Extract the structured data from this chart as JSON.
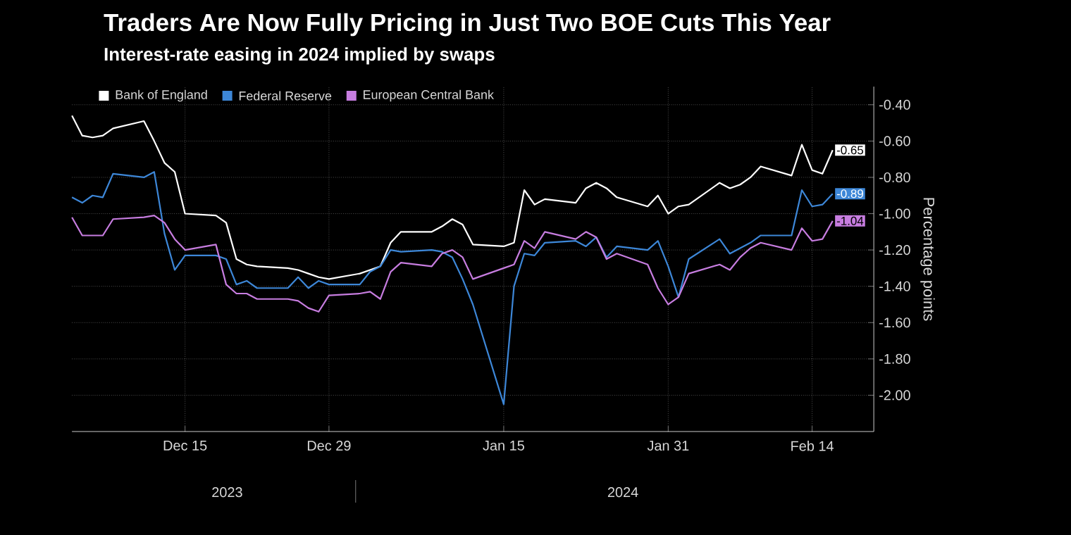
{
  "chart_data": {
    "type": "line",
    "title": "Traders Are Now Fully Pricing in Just Two BOE Cuts This Year",
    "subtitle": "Interest-rate easing in 2024 implied by swaps",
    "ylabel": "Percentage points",
    "annotations": [
      "2023",
      "2024"
    ],
    "x": [
      "2023-12-04",
      "2023-12-05",
      "2023-12-06",
      "2023-12-07",
      "2023-12-08",
      "2023-12-11",
      "2023-12-12",
      "2023-12-13",
      "2023-12-14",
      "2023-12-15",
      "2023-12-18",
      "2023-12-19",
      "2023-12-20",
      "2023-12-21",
      "2023-12-22",
      "2023-12-25",
      "2023-12-26",
      "2023-12-27",
      "2023-12-28",
      "2023-12-29",
      "2024-01-01",
      "2024-01-02",
      "2024-01-03",
      "2024-01-04",
      "2024-01-05",
      "2024-01-08",
      "2024-01-09",
      "2024-01-10",
      "2024-01-11",
      "2024-01-12",
      "2024-01-15",
      "2024-01-16",
      "2024-01-17",
      "2024-01-18",
      "2024-01-19",
      "2024-01-22",
      "2024-01-23",
      "2024-01-24",
      "2024-01-25",
      "2024-01-26",
      "2024-01-29",
      "2024-01-30",
      "2024-01-31",
      "2024-02-01",
      "2024-02-02",
      "2024-02-05",
      "2024-02-06",
      "2024-02-07",
      "2024-02-08",
      "2024-02-09",
      "2024-02-12",
      "2024-02-13",
      "2024-02-14",
      "2024-02-15",
      "2024-02-16"
    ],
    "series": [
      {
        "name": "Bank of England",
        "color": "#ffffff",
        "values": [
          -0.46,
          -0.57,
          -0.58,
          -0.57,
          -0.53,
          -0.49,
          -0.6,
          -0.72,
          -0.77,
          -1.0,
          -1.01,
          -1.05,
          -1.25,
          -1.28,
          -1.29,
          -1.3,
          -1.31,
          -1.33,
          -1.35,
          -1.36,
          -1.33,
          -1.31,
          -1.29,
          -1.16,
          -1.1,
          -1.1,
          -1.07,
          -1.03,
          -1.06,
          -1.17,
          -1.18,
          -1.16,
          -0.87,
          -0.95,
          -0.92,
          -0.94,
          -0.86,
          -0.83,
          -0.86,
          -0.91,
          -0.96,
          -0.9,
          -1.0,
          -0.96,
          -0.95,
          -0.83,
          -0.86,
          -0.84,
          -0.8,
          -0.74,
          -0.79,
          -0.62,
          -0.76,
          -0.78,
          -0.65
        ],
        "value_labels": [
          null,
          null,
          null,
          null,
          null,
          null,
          null,
          null,
          null,
          null,
          null,
          null,
          null,
          null,
          null,
          null,
          null,
          null,
          null,
          null,
          null,
          null,
          null,
          null,
          null,
          null,
          null,
          null,
          null,
          null,
          null,
          null,
          null,
          null,
          null,
          null,
          null,
          null,
          null,
          null,
          null,
          null,
          null,
          null,
          null,
          null,
          null,
          null,
          null,
          null,
          null,
          null,
          null,
          null,
          "-0.65"
        ]
      },
      {
        "name": "Federal Reserve",
        "color": "#3d87d8",
        "values": [
          -0.91,
          -0.94,
          -0.9,
          -0.91,
          -0.78,
          -0.8,
          -0.77,
          -1.11,
          -1.31,
          -1.23,
          -1.23,
          -1.25,
          -1.39,
          -1.37,
          -1.41,
          -1.41,
          -1.35,
          -1.41,
          -1.37,
          -1.39,
          -1.39,
          -1.32,
          -1.29,
          -1.2,
          -1.21,
          -1.2,
          -1.21,
          -1.24,
          -1.36,
          -1.5,
          -2.05,
          -1.4,
          -1.22,
          -1.23,
          -1.16,
          -1.15,
          -1.18,
          -1.13,
          -1.24,
          -1.18,
          -1.2,
          -1.15,
          -1.29,
          -1.46,
          -1.25,
          -1.14,
          -1.22,
          -1.19,
          -1.16,
          -1.12,
          -1.12,
          -0.87,
          -0.96,
          -0.95,
          -0.89
        ],
        "value_labels": [
          null,
          null,
          null,
          null,
          null,
          null,
          null,
          null,
          null,
          null,
          null,
          null,
          null,
          null,
          null,
          null,
          null,
          null,
          null,
          null,
          null,
          null,
          null,
          null,
          null,
          null,
          null,
          null,
          null,
          null,
          null,
          null,
          null,
          null,
          null,
          null,
          null,
          null,
          null,
          null,
          null,
          null,
          null,
          null,
          null,
          null,
          null,
          null,
          null,
          null,
          null,
          null,
          null,
          null,
          "-0.89"
        ]
      },
      {
        "name": "European Central Bank",
        "color": "#c77de0",
        "values": [
          -1.02,
          -1.12,
          -1.12,
          -1.12,
          -1.03,
          -1.02,
          -1.01,
          -1.05,
          -1.14,
          -1.2,
          -1.17,
          -1.39,
          -1.44,
          -1.44,
          -1.47,
          -1.47,
          -1.48,
          -1.52,
          -1.54,
          -1.45,
          -1.44,
          -1.43,
          -1.47,
          -1.32,
          -1.27,
          -1.29,
          -1.22,
          -1.2,
          -1.24,
          -1.36,
          -1.3,
          -1.28,
          -1.15,
          -1.19,
          -1.1,
          -1.14,
          -1.1,
          -1.13,
          -1.25,
          -1.22,
          -1.28,
          -1.41,
          -1.5,
          -1.46,
          -1.33,
          -1.28,
          -1.31,
          -1.24,
          -1.19,
          -1.16,
          -1.2,
          -1.08,
          -1.15,
          -1.14,
          -1.04
        ],
        "value_labels": [
          null,
          null,
          null,
          null,
          null,
          null,
          null,
          null,
          null,
          null,
          null,
          null,
          null,
          null,
          null,
          null,
          null,
          null,
          null,
          null,
          null,
          null,
          null,
          null,
          null,
          null,
          null,
          null,
          null,
          null,
          null,
          null,
          null,
          null,
          null,
          null,
          null,
          null,
          null,
          null,
          null,
          null,
          null,
          null,
          null,
          null,
          null,
          null,
          null,
          null,
          null,
          null,
          null,
          null,
          "-1.04"
        ]
      }
    ],
    "xlim": [
      "2023-12-04",
      "2024-02-20"
    ],
    "xticks": [
      {
        "value": "2023-12-15",
        "label": "Dec 15"
      },
      {
        "value": "2023-12-29",
        "label": "Dec 29"
      },
      {
        "value": "2024-01-15",
        "label": "Jan 15"
      },
      {
        "value": "2024-01-31",
        "label": "Jan 31"
      },
      {
        "value": "2024-02-14",
        "label": "Feb 14"
      }
    ],
    "ylim": [
      -2.2,
      -0.3
    ],
    "yticks": [
      {
        "value": -0.4,
        "label": "-0.40"
      },
      {
        "value": -0.6,
        "label": "-0.60"
      },
      {
        "value": -0.8,
        "label": "-0.80"
      },
      {
        "value": -1.0,
        "label": "-1.00"
      },
      {
        "value": -1.2,
        "label": "-1.20"
      },
      {
        "value": -1.4,
        "label": "-1.40"
      },
      {
        "value": -1.6,
        "label": "-1.60"
      },
      {
        "value": -1.8,
        "label": "-1.80"
      },
      {
        "value": -2.0,
        "label": "-2.00"
      }
    ],
    "grid": true,
    "legend": "top left",
    "line_style": "solid",
    "marker": "none"
  }
}
